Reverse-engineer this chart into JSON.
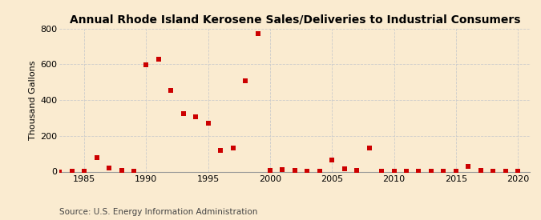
{
  "title": "Annual Rhode Island Kerosene Sales/Deliveries to Industrial Consumers",
  "ylabel": "Thousand Gallons",
  "source": "Source: U.S. Energy Information Administration",
  "background_color": "#faebd0",
  "xlim": [
    1983,
    2021
  ],
  "ylim": [
    0,
    800
  ],
  "yticks": [
    0,
    200,
    400,
    600,
    800
  ],
  "xticks": [
    1985,
    1990,
    1995,
    2000,
    2005,
    2010,
    2015,
    2020
  ],
  "data": {
    "1983": 0,
    "1984": 2,
    "1985": 2,
    "1986": 80,
    "1987": 20,
    "1988": 5,
    "1989": 2,
    "1990": 596,
    "1991": 630,
    "1992": 455,
    "1993": 325,
    "1994": 305,
    "1995": 270,
    "1996": 120,
    "1997": 130,
    "1998": 510,
    "1999": 770,
    "2000": 5,
    "2001": 10,
    "2002": 5,
    "2003": 3,
    "2004": 2,
    "2005": 65,
    "2006": 15,
    "2007": 5,
    "2008": 130,
    "2009": 3,
    "2010": 2,
    "2011": 2,
    "2012": 2,
    "2013": 2,
    "2014": 2,
    "2015": 2,
    "2016": 30,
    "2017": 5,
    "2018": 2,
    "2019": 2,
    "2020": 2
  },
  "marker_color": "#cc0000",
  "marker_size": 18,
  "grid_color": "#cccccc",
  "title_fontsize": 10,
  "label_fontsize": 8,
  "tick_fontsize": 8,
  "source_fontsize": 7.5
}
